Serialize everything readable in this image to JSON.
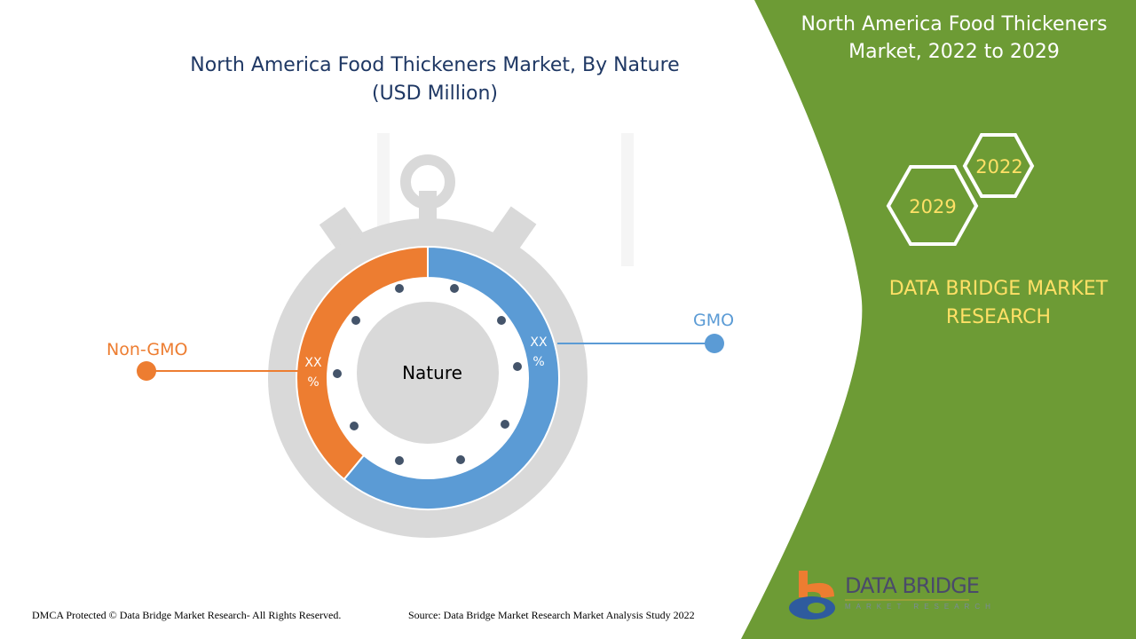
{
  "title": {
    "line1": "North America Food Thickeners Market, By Nature",
    "line2": "(USD Million)"
  },
  "side_panel": {
    "title_line1": "North America Food Thickeners",
    "title_line2": "Market, 2022 to 2029",
    "year_start": "2022",
    "year_end": "2029",
    "brand_line1": "DATA BRIDGE MARKET",
    "brand_line2": "RESEARCH"
  },
  "colors": {
    "gmo": "#5b9bd5",
    "non_gmo": "#ed7d31",
    "panel": "#6d9b35",
    "title": "#1f3864",
    "brand": "#ffe066"
  },
  "chart_data": {
    "type": "pie",
    "variant": "donut",
    "center_label": "Nature",
    "series": [
      {
        "name": "GMO",
        "value": 61,
        "data_label": "XX %"
      },
      {
        "name": "Non-GMO",
        "value": 39,
        "data_label": "XX %"
      }
    ]
  },
  "logo": {
    "name": "DATA BRIDGE",
    "tagline": "MARKET RESEARCH"
  },
  "footer": {
    "copyright": "DMCA Protected © Data Bridge Market Research- All Rights Reserved.",
    "source": "Source: Data Bridge Market Research Market Analysis Study 2022"
  }
}
